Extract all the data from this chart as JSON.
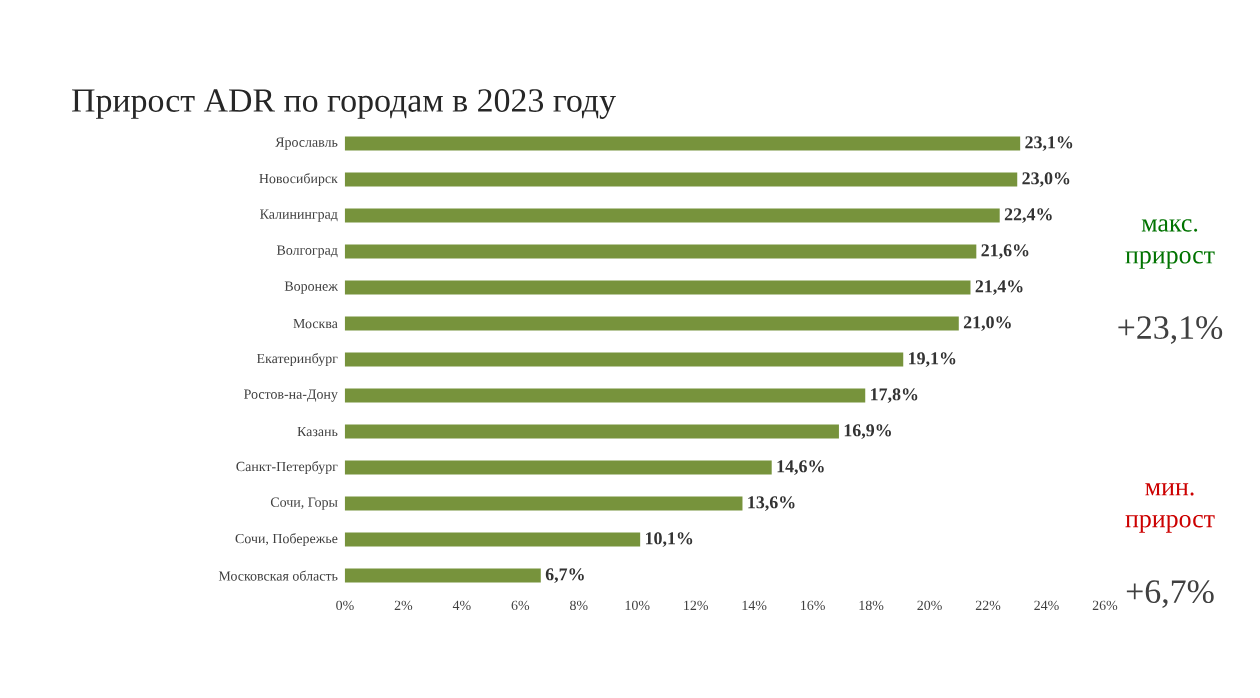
{
  "chart_data": {
    "type": "bar",
    "orientation": "horizontal",
    "title": "Прирост ADR по городам в 2023 году",
    "categories": [
      "Ярославль",
      "Новосибирск",
      "Калининград",
      "Волгоград",
      "Воронеж",
      "Москва",
      "Екатеринбург",
      "Ростов-на-Дону",
      "Казань",
      "Санкт-Петербург",
      "Сочи, Горы",
      "Сочи, Побережье",
      "Московская область"
    ],
    "values": [
      23.1,
      23.0,
      22.4,
      21.6,
      21.4,
      21.0,
      19.1,
      17.8,
      16.9,
      14.6,
      13.6,
      10.1,
      6.7
    ],
    "value_labels": [
      "23,1%",
      "23,0%",
      "22,4%",
      "21,6%",
      "21,4%",
      "21,0%",
      "19,1%",
      "17,8%",
      "16,9%",
      "14,6%",
      "13,6%",
      "10,1%",
      "6,7%"
    ],
    "color": "#77933c",
    "xlim": [
      0,
      26
    ],
    "xticks": [
      {
        "value": 0,
        "label": "0%"
      },
      {
        "value": 2,
        "label": "2%"
      },
      {
        "value": 4,
        "label": "4%"
      },
      {
        "value": 6,
        "label": "6%"
      },
      {
        "value": 8,
        "label": "8%"
      },
      {
        "value": 10,
        "label": "10%"
      },
      {
        "value": 12,
        "label": "12%"
      },
      {
        "value": 14,
        "label": "14%"
      },
      {
        "value": 16,
        "label": "16%"
      },
      {
        "value": 18,
        "label": "18%"
      },
      {
        "value": 20,
        "label": "20%"
      },
      {
        "value": 22,
        "label": "22%"
      },
      {
        "value": 24,
        "label": "24%"
      },
      {
        "value": 26,
        "label": "26%"
      }
    ],
    "grid": false,
    "annotations": [
      "макс. прирост",
      "+23,1%",
      "мин. прирост",
      "+6,7%"
    ]
  }
}
